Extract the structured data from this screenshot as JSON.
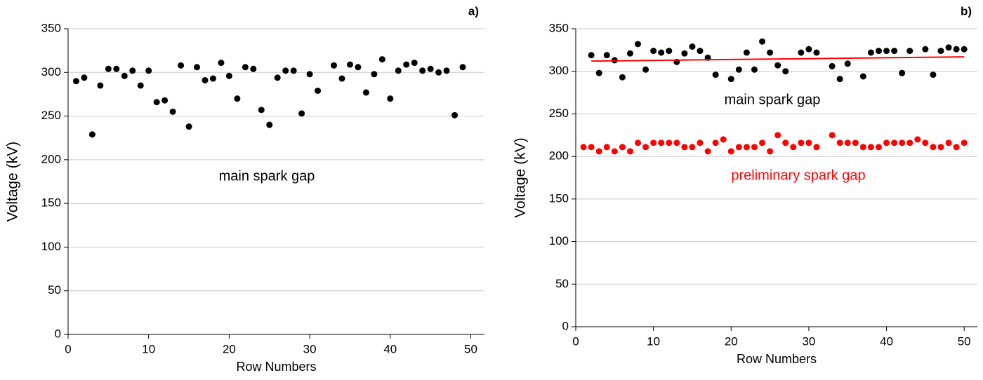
{
  "chart_data": [
    {
      "type": "scatter",
      "label": "a)",
      "xlabel": "Row Numbers",
      "ylabel": "Voltage (kV)",
      "xlim": [
        0,
        51.7
      ],
      "ylim": [
        0,
        350
      ],
      "xticks": [
        0,
        10,
        20,
        30,
        40,
        50
      ],
      "yticks": [
        0,
        50,
        100,
        150,
        200,
        250,
        300,
        350
      ],
      "grid": true,
      "series": [
        {
          "name": "main spark gap",
          "color": "#000000",
          "mode": "markers",
          "x": [
            1,
            2,
            3,
            4,
            5,
            6,
            7,
            8,
            9,
            10,
            11,
            12,
            13,
            14,
            15,
            16,
            17,
            18,
            19,
            20,
            21,
            22,
            23,
            24,
            25,
            26,
            27,
            28,
            29,
            30,
            31,
            33,
            34,
            35,
            36,
            37,
            38,
            39,
            40,
            41,
            42,
            43,
            44,
            45,
            46,
            47,
            48,
            49
          ],
          "values": [
            290,
            294,
            229,
            285,
            304,
            304,
            296,
            302,
            285,
            302,
            266,
            268,
            255,
            308,
            238,
            306,
            291,
            293,
            311,
            296,
            270,
            306,
            304,
            257,
            240,
            294,
            302,
            302,
            253,
            298,
            279,
            308,
            293,
            309,
            306,
            277,
            298,
            315,
            270,
            302,
            309,
            311,
            302,
            304,
            300,
            302,
            251,
            306
          ]
        }
      ]
    },
    {
      "type": "scatter",
      "label": "b)",
      "xlabel": "Row Numbers",
      "ylabel": "Voltage (kV)",
      "xlim": [
        0,
        51.7
      ],
      "ylim": [
        0,
        350
      ],
      "xticks": [
        0,
        10,
        20,
        30,
        40,
        50
      ],
      "yticks": [
        0,
        50,
        100,
        150,
        200,
        250,
        300,
        350
      ],
      "grid": true,
      "series": [
        {
          "name": "main spark gap",
          "color": "#000000",
          "mode": "markers",
          "x": [
            2,
            3,
            4,
            5,
            6,
            7,
            8,
            9,
            10,
            11,
            12,
            13,
            14,
            15,
            16,
            17,
            18,
            20,
            21,
            22,
            23,
            24,
            25,
            26,
            27,
            29,
            30,
            31,
            33,
            34,
            35,
            37,
            38,
            39,
            40,
            41,
            42,
            43,
            45,
            46,
            47,
            48,
            49,
            50
          ],
          "values": [
            319,
            298,
            319,
            313,
            293,
            321,
            332,
            302,
            324,
            322,
            324,
            311,
            321,
            329,
            324,
            316,
            296,
            291,
            302,
            322,
            302,
            335,
            322,
            307,
            300,
            322,
            326,
            322,
            306,
            291,
            309,
            294,
            322,
            324,
            324,
            324,
            298,
            324,
            326,
            296,
            324,
            328,
            326,
            326
          ]
        },
        {
          "color": "#ff0000",
          "mode": "line",
          "x": [
            2,
            50
          ],
          "values": [
            312,
            317
          ]
        },
        {
          "name": "preliminary spark gap",
          "color": "#ff0000",
          "mode": "markers",
          "x": [
            1,
            2,
            3,
            4,
            5,
            6,
            7,
            8,
            9,
            10,
            11,
            12,
            13,
            14,
            15,
            16,
            17,
            18,
            19,
            20,
            21,
            22,
            23,
            24,
            25,
            26,
            27,
            28,
            29,
            30,
            31,
            33,
            34,
            35,
            36,
            37,
            38,
            39,
            40,
            41,
            42,
            43,
            44,
            45,
            46,
            47,
            48,
            49,
            50
          ],
          "values": [
            211,
            211,
            206,
            211,
            206,
            211,
            206,
            216,
            211,
            216,
            216,
            216,
            216,
            211,
            211,
            216,
            206,
            216,
            220,
            206,
            211,
            211,
            211,
            216,
            206,
            225,
            216,
            211,
            216,
            216,
            211,
            225,
            216,
            216,
            216,
            211,
            211,
            211,
            216,
            216,
            216,
            216,
            220,
            216,
            211,
            211,
            216,
            211,
            216
          ]
        }
      ]
    }
  ]
}
